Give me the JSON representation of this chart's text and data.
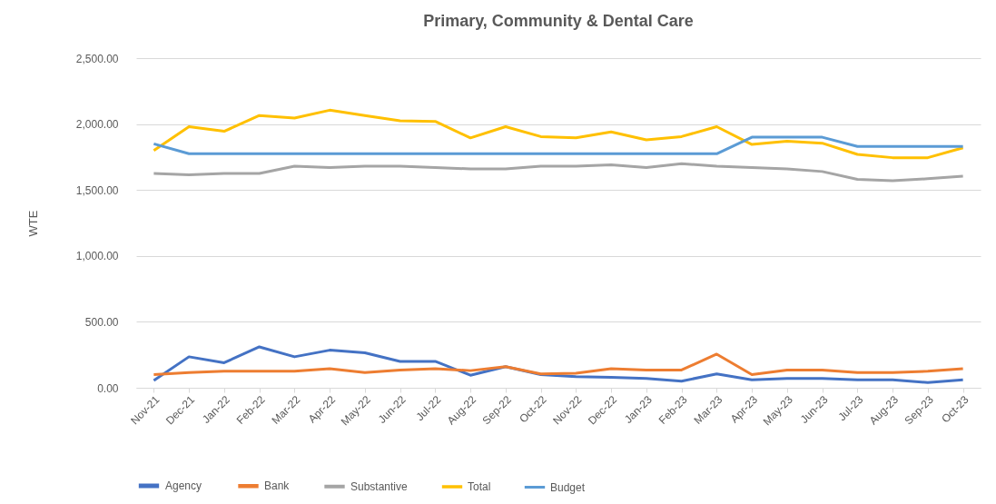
{
  "chart_data": {
    "type": "line",
    "title": "Primary, Community & Dental Care",
    "ylabel": "WTE",
    "categories": [
      "Nov-21",
      "Dec-21",
      "Jan-22",
      "Feb-22",
      "Mar-22",
      "Apr-22",
      "May-22",
      "Jun-22",
      "Jul-22",
      "Aug-22",
      "Sep-22",
      "Oct-22",
      "Nov-22",
      "Dec-22",
      "Jan-23",
      "Feb-23",
      "Mar-23",
      "Apr-23",
      "May-23",
      "Jun-23",
      "Jul-23",
      "Aug-23",
      "Sep-23",
      "Oct-23"
    ],
    "series": [
      {
        "name": "Agency",
        "color": "#4472c4",
        "values": [
          55,
          235,
          190,
          310,
          235,
          285,
          265,
          200,
          200,
          95,
          160,
          100,
          85,
          80,
          70,
          50,
          105,
          60,
          70,
          70,
          60,
          60,
          40,
          60
        ]
      },
      {
        "name": "Bank",
        "color": "#ed7d31",
        "values": [
          100,
          115,
          125,
          125,
          125,
          145,
          115,
          135,
          145,
          130,
          160,
          105,
          110,
          145,
          135,
          135,
          255,
          100,
          135,
          135,
          115,
          115,
          125,
          145
        ]
      },
      {
        "name": "Substantive",
        "color": "#a5a5a5",
        "values": [
          1625,
          1615,
          1625,
          1625,
          1680,
          1670,
          1680,
          1680,
          1670,
          1660,
          1660,
          1680,
          1680,
          1690,
          1670,
          1700,
          1680,
          1670,
          1660,
          1640,
          1580,
          1570,
          1585,
          1605
        ]
      },
      {
        "name": "Total",
        "color": "#ffc000",
        "values": [
          1800,
          1980,
          1945,
          2065,
          2045,
          2105,
          2065,
          2025,
          2020,
          1895,
          1980,
          1905,
          1895,
          1940,
          1880,
          1905,
          1980,
          1845,
          1870,
          1855,
          1770,
          1745,
          1745,
          1820
        ]
      },
      {
        "name": "Budget",
        "color": "#5b9bd5",
        "values": [
          1850,
          1775,
          1775,
          1775,
          1775,
          1775,
          1775,
          1775,
          1775,
          1775,
          1775,
          1775,
          1775,
          1775,
          1775,
          1775,
          1775,
          1900,
          1900,
          1900,
          1830,
          1830,
          1830,
          1830
        ]
      }
    ],
    "ylim": [
      0,
      2500
    ],
    "yticks": [
      {
        "value": 0,
        "label": "0.00"
      },
      {
        "value": 500,
        "label": "500.00"
      },
      {
        "value": 1000,
        "label": "1,000.00"
      },
      {
        "value": 1500,
        "label": "1,500.00"
      },
      {
        "value": 2000,
        "label": "2,000.00"
      },
      {
        "value": 2500,
        "label": "2,500.00"
      }
    ],
    "grid": "y",
    "legend": "bottom",
    "marker": "none",
    "line_style": "solid"
  }
}
